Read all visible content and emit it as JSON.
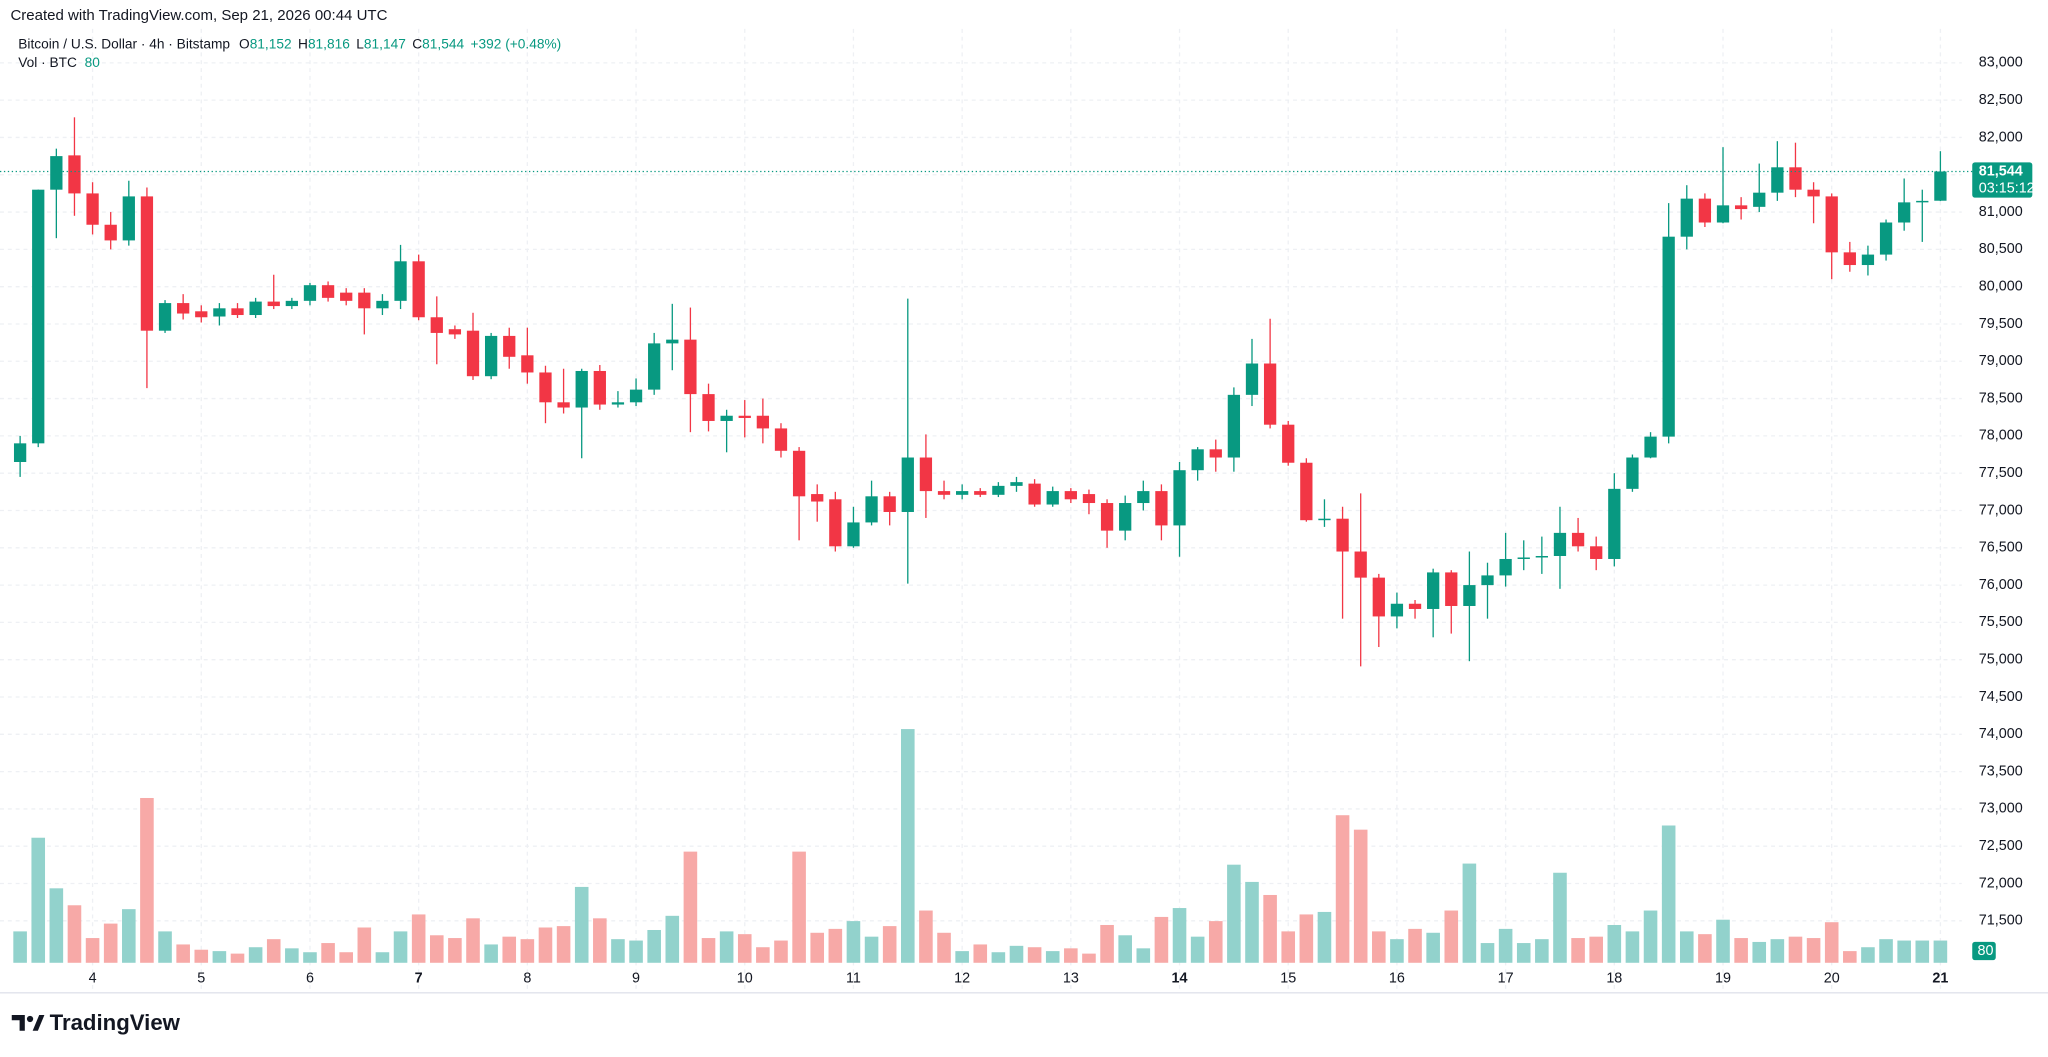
{
  "header": {
    "credit": "Created with TradingView.com, Sep 21, 2026 00:44 UTC",
    "symbol": "Bitcoin / U.S. Dollar · 4h · Bitstamp",
    "ohlc": [
      {
        "key": "O",
        "value": 81152,
        "label": "81,152"
      },
      {
        "key": "H",
        "value": 81816,
        "label": "81,816"
      },
      {
        "key": "L",
        "value": 81147,
        "label": "81,147"
      },
      {
        "key": "C",
        "value": 81544,
        "label": "81,544"
      }
    ],
    "change": {
      "value": 392,
      "label": "+392"
    },
    "change_pct": {
      "value": 0.48,
      "label": "(+0.48%)"
    },
    "countdown": "03:15:12",
    "brand": "TradingView"
  },
  "chart_data": {
    "type": "candlestick",
    "categories": [
      null,
      null,
      null,
      null,
      "4",
      null,
      null,
      null,
      null,
      null,
      "5",
      null,
      null,
      null,
      null,
      null,
      "6",
      null,
      null,
      null,
      null,
      null,
      "7",
      null,
      null,
      null,
      null,
      null,
      "8",
      null,
      null,
      null,
      null,
      null,
      "9",
      null,
      null,
      null,
      null,
      null,
      "10",
      null,
      null,
      null,
      null,
      null,
      "11",
      null,
      null,
      null,
      null,
      null,
      "12",
      null,
      null,
      null,
      null,
      null,
      "13",
      null,
      null,
      null,
      null,
      null,
      "14",
      null,
      null,
      null,
      null,
      null,
      "15",
      null,
      null,
      null,
      null,
      null,
      "16",
      null,
      null,
      null,
      null,
      null,
      "17",
      null,
      null,
      null,
      null,
      null,
      "18",
      null,
      null,
      null,
      null,
      null,
      "19",
      null,
      null,
      null,
      null,
      null,
      "20",
      null,
      null,
      null,
      null,
      null,
      "21"
    ],
    "open": [
      77650,
      77900,
      81300,
      81760,
      81250,
      80830,
      80620,
      81210,
      79410,
      79780,
      79670,
      79600,
      79710,
      79620,
      79800,
      79740,
      79810,
      80020,
      79920,
      79920,
      79710,
      79810,
      80340,
      79590,
      79430,
      79410,
      78800,
      79340,
      79080,
      78850,
      78450,
      78380,
      78870,
      78420,
      78450,
      78620,
      79240,
      79290,
      78560,
      78200,
      78270,
      78270,
      78100,
      77800,
      77220,
      77150,
      76520,
      76840,
      77190,
      76980,
      77710,
      77260,
      77210,
      77260,
      77210,
      77330,
      77360,
      77080,
      77260,
      77220,
      77100,
      76730,
      77100,
      77260,
      76800,
      77540,
      77820,
      77710,
      78550,
      78970,
      78150,
      77640,
      76870,
      76890,
      76450,
      76100,
      75580,
      75750,
      75680,
      76170,
      75720,
      76000,
      76130,
      76350,
      76370,
      76390,
      76700,
      76520,
      76350,
      77290,
      77710,
      77990,
      80670,
      81180,
      80860,
      81090,
      81070,
      81260,
      81600,
      81300,
      81210,
      80460,
      80290,
      80430,
      80860,
      81130,
      81152
    ],
    "high": [
      78000,
      81300,
      81850,
      82270,
      81400,
      81000,
      81420,
      81330,
      79820,
      79900,
      79750,
      79780,
      79780,
      79850,
      80160,
      79850,
      80050,
      80070,
      79980,
      79980,
      79900,
      80560,
      80430,
      79870,
      79480,
      79650,
      79380,
      79450,
      79450,
      78940,
      78900,
      78900,
      78950,
      78600,
      78770,
      79380,
      79770,
      79720,
      78700,
      78350,
      78480,
      78500,
      78170,
      77850,
      77350,
      77250,
      77050,
      77400,
      77250,
      79840,
      78020,
      77400,
      77350,
      77300,
      77380,
      77450,
      77420,
      77320,
      77300,
      77280,
      77150,
      77200,
      77400,
      77350,
      77650,
      77850,
      77950,
      78650,
      79300,
      79570,
      78200,
      77700,
      77150,
      77050,
      77230,
      76150,
      75900,
      75800,
      76220,
      76200,
      76450,
      76300,
      76700,
      76600,
      76650,
      77050,
      76900,
      76650,
      77500,
      77750,
      78050,
      81120,
      81360,
      81250,
      81870,
      81200,
      81650,
      81950,
      81930,
      81400,
      81250,
      80600,
      80550,
      80900,
      81450,
      81300,
      81816
    ],
    "low": [
      77450,
      77850,
      80650,
      80950,
      80700,
      80500,
      80550,
      78640,
      79380,
      79560,
      79520,
      79480,
      79580,
      79580,
      79700,
      79700,
      79750,
      79800,
      79750,
      79360,
      79620,
      79700,
      79550,
      78960,
      79300,
      78750,
      78760,
      78900,
      78700,
      78170,
      78300,
      77700,
      78350,
      78380,
      78400,
      78550,
      78880,
      78050,
      78060,
      77780,
      77980,
      77900,
      77710,
      76600,
      76850,
      76450,
      76500,
      76800,
      76800,
      76020,
      76900,
      77150,
      77150,
      77180,
      77180,
      77250,
      77050,
      77050,
      77100,
      76950,
      76500,
      76600,
      77000,
      76600,
      76380,
      77400,
      77520,
      77520,
      78400,
      78100,
      77600,
      76850,
      76780,
      75550,
      74910,
      75170,
      75420,
      75550,
      75300,
      75350,
      74980,
      75550,
      75980,
      76200,
      76150,
      75950,
      76450,
      76200,
      76250,
      77250,
      77700,
      77900,
      80500,
      80800,
      80850,
      80900,
      81000,
      81150,
      81200,
      80850,
      80100,
      80200,
      80150,
      80350,
      80750,
      80600,
      81147
    ],
    "close": [
      77900,
      81300,
      81750,
      81250,
      80830,
      80620,
      81210,
      79410,
      79780,
      79640,
      79590,
      79710,
      79620,
      79800,
      79740,
      79810,
      80020,
      79850,
      79810,
      79710,
      79810,
      80340,
      79590,
      79380,
      79360,
      78800,
      79340,
      79060,
      78850,
      78450,
      78380,
      78870,
      78420,
      78450,
      78620,
      79240,
      79290,
      78560,
      78200,
      78270,
      78240,
      78100,
      77800,
      77190,
      77120,
      76520,
      76840,
      77190,
      76980,
      77710,
      77260,
      77210,
      77260,
      77210,
      77330,
      77380,
      77080,
      77260,
      77150,
      77100,
      76730,
      77100,
      77260,
      76800,
      77540,
      77820,
      77710,
      78550,
      78970,
      78150,
      77640,
      76870,
      76890,
      76450,
      76100,
      75580,
      75750,
      75680,
      76170,
      75720,
      76000,
      76130,
      76350,
      76370,
      76390,
      76700,
      76520,
      76350,
      77290,
      77710,
      77990,
      80670,
      81180,
      80860,
      81090,
      81040,
      81260,
      81600,
      81300,
      81210,
      80460,
      80290,
      80430,
      80860,
      81130,
      81150,
      81544
    ],
    "volume": [
      113,
      450,
      268,
      207,
      89,
      141,
      193,
      593,
      113,
      66,
      47,
      42,
      33,
      56,
      85,
      52,
      38,
      71,
      38,
      127,
      38,
      113,
      174,
      99,
      89,
      160,
      66,
      94,
      85,
      127,
      132,
      273,
      160,
      85,
      80,
      118,
      169,
      400,
      89,
      113,
      103,
      56,
      80,
      400,
      108,
      122,
      150,
      94,
      132,
      841,
      188,
      108,
      42,
      66,
      38,
      61,
      56,
      42,
      52,
      33,
      136,
      99,
      52,
      165,
      197,
      94,
      150,
      353,
      291,
      244,
      113,
      174,
      183,
      531,
      479,
      113,
      85,
      122,
      108,
      188,
      357,
      71,
      122,
      71,
      85,
      324,
      89,
      94,
      136,
      113,
      188,
      494,
      113,
      103,
      155,
      89,
      75,
      85,
      94,
      89,
      146,
      42,
      56,
      85,
      80,
      80,
      80
    ],
    "volume_title": "Vol · BTC",
    "up_color": "#089981",
    "down_color": "#f23645",
    "volume_up_color": "#92d2cc",
    "volume_down_color": "#f7a9a7",
    "ylim": [
      70920,
      83455
    ],
    "yticks": [
      {
        "value": 71500,
        "label": "71,500"
      },
      {
        "value": 72000,
        "label": "72,000"
      },
      {
        "value": 72500,
        "label": "72,500"
      },
      {
        "value": 73000,
        "label": "73,000"
      },
      {
        "value": 73500,
        "label": "73,500"
      },
      {
        "value": 74000,
        "label": "74,000"
      },
      {
        "value": 74500,
        "label": "74,500"
      },
      {
        "value": 75000,
        "label": "75,000"
      },
      {
        "value": 75500,
        "label": "75,500"
      },
      {
        "value": 76000,
        "label": "76,000"
      },
      {
        "value": 76500,
        "label": "76,500"
      },
      {
        "value": 77000,
        "label": "77,000"
      },
      {
        "value": 77500,
        "label": "77,500"
      },
      {
        "value": 78000,
        "label": "78,000"
      },
      {
        "value": 78500,
        "label": "78,500"
      },
      {
        "value": 79000,
        "label": "79,000"
      },
      {
        "value": 79500,
        "label": "79,500"
      },
      {
        "value": 80000,
        "label": "80,000"
      },
      {
        "value": 80500,
        "label": "80,500"
      },
      {
        "value": 81000,
        "label": "81,000"
      },
      {
        "value": 81500,
        "label": "81,500"
      },
      {
        "value": 82000,
        "label": "82,000"
      },
      {
        "value": 82500,
        "label": "82,500"
      },
      {
        "value": 83000,
        "label": "83,000"
      }
    ],
    "grid": true,
    "last_price_line": true
  }
}
